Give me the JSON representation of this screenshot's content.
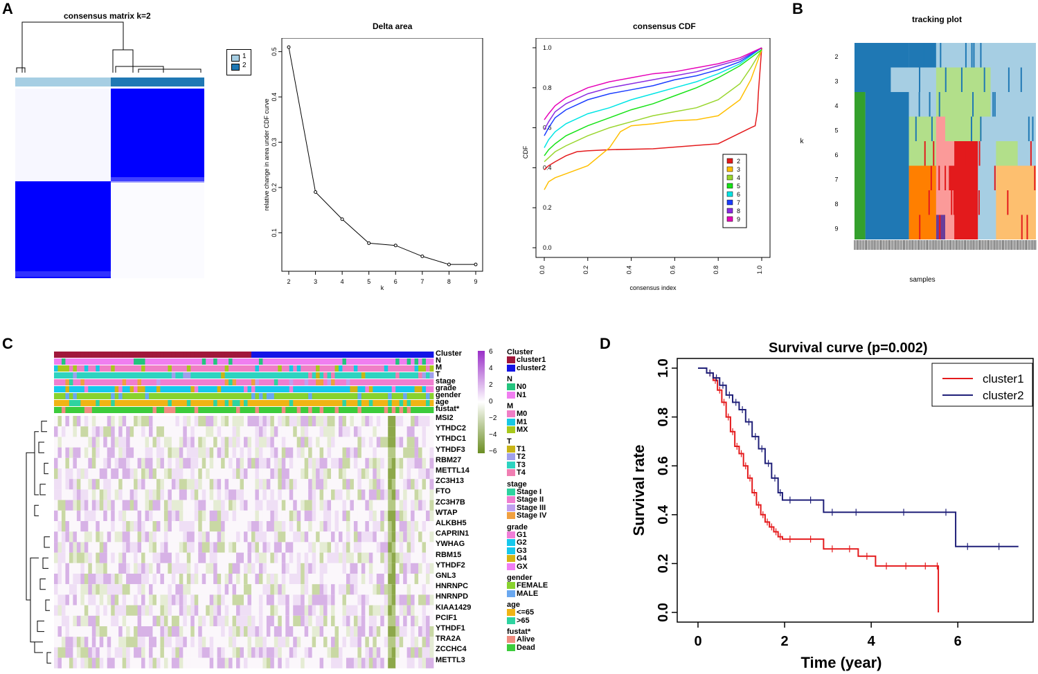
{
  "panels": {
    "a": "A",
    "b": "B",
    "c": "C",
    "d": "D"
  },
  "consensus_matrix": {
    "title": "consensus matrix k=2",
    "legend": [
      "1",
      "2"
    ],
    "colors": {
      "c1": "#a6cee3",
      "c2": "#1f78b4",
      "fill": "#0000ff"
    }
  },
  "tracking": {
    "title": "tracking plot",
    "xlabel": "samples",
    "ylabel": "k",
    "rows": [
      "2",
      "3",
      "4",
      "5",
      "6",
      "7",
      "8",
      "9"
    ]
  },
  "chart_data": [
    {
      "id": "delta",
      "type": "line",
      "title": "Delta area",
      "xlabel": "k",
      "ylabel": "relative change in area under CDF curve",
      "x": [
        2,
        3,
        4,
        5,
        6,
        7,
        8,
        9
      ],
      "y": [
        0.51,
        0.19,
        0.13,
        0.077,
        0.072,
        0.048,
        0.03,
        0.03
      ],
      "xticks": [
        "2",
        "3",
        "4",
        "5",
        "6",
        "7",
        "8",
        "9"
      ],
      "yticks": [
        "0.1",
        "0.2",
        "0.3",
        "0.4",
        "0.5"
      ],
      "ylim": [
        0.015,
        0.53
      ]
    },
    {
      "id": "cdf",
      "type": "line",
      "title": "consensus CDF",
      "xlabel": "consensus index",
      "ylabel": "CDF",
      "xticks": [
        "0.0",
        "0.2",
        "0.4",
        "0.6",
        "0.8",
        "1.0"
      ],
      "yticks": [
        "0.0",
        "0.2",
        "0.4",
        "0.6",
        "0.8",
        "1.0"
      ],
      "series": [
        {
          "name": "2",
          "color": "#e41a1c",
          "x": [
            0.0,
            0.02,
            0.05,
            0.1,
            0.15,
            0.2,
            0.3,
            0.5,
            0.8,
            0.95,
            0.97,
            0.98,
            0.985,
            1.0
          ],
          "y": [
            0.39,
            0.41,
            0.43,
            0.46,
            0.48,
            0.485,
            0.49,
            0.495,
            0.52,
            0.6,
            0.61,
            0.68,
            0.78,
            1.0
          ]
        },
        {
          "name": "3",
          "color": "#ffbf00",
          "x": [
            0.0,
            0.02,
            0.05,
            0.1,
            0.2,
            0.3,
            0.35,
            0.4,
            0.5,
            0.6,
            0.7,
            0.8,
            0.9,
            0.95,
            1.0
          ],
          "y": [
            0.29,
            0.33,
            0.35,
            0.37,
            0.41,
            0.5,
            0.58,
            0.61,
            0.62,
            0.635,
            0.64,
            0.66,
            0.74,
            0.84,
            0.99
          ]
        },
        {
          "name": "4",
          "color": "#99d62e",
          "x": [
            0.0,
            0.02,
            0.05,
            0.1,
            0.2,
            0.3,
            0.4,
            0.5,
            0.6,
            0.7,
            0.8,
            0.9,
            0.95,
            1.0
          ],
          "y": [
            0.43,
            0.45,
            0.48,
            0.51,
            0.56,
            0.6,
            0.63,
            0.66,
            0.68,
            0.7,
            0.74,
            0.82,
            0.9,
            0.99
          ]
        },
        {
          "name": "5",
          "color": "#17e317",
          "x": [
            0.0,
            0.02,
            0.05,
            0.1,
            0.2,
            0.3,
            0.4,
            0.5,
            0.6,
            0.7,
            0.8,
            0.9,
            1.0
          ],
          "y": [
            0.46,
            0.49,
            0.52,
            0.56,
            0.61,
            0.65,
            0.69,
            0.72,
            0.76,
            0.8,
            0.85,
            0.91,
            0.99
          ]
        },
        {
          "name": "6",
          "color": "#00e5e5",
          "x": [
            0.0,
            0.02,
            0.05,
            0.1,
            0.2,
            0.3,
            0.4,
            0.5,
            0.6,
            0.7,
            0.8,
            0.9,
            1.0
          ],
          "y": [
            0.5,
            0.54,
            0.58,
            0.62,
            0.67,
            0.7,
            0.74,
            0.77,
            0.8,
            0.83,
            0.87,
            0.92,
            1.0
          ]
        },
        {
          "name": "7",
          "color": "#1a3dff",
          "x": [
            0.0,
            0.02,
            0.05,
            0.1,
            0.2,
            0.3,
            0.4,
            0.5,
            0.6,
            0.7,
            0.8,
            0.9,
            1.0
          ],
          "y": [
            0.56,
            0.6,
            0.65,
            0.69,
            0.74,
            0.77,
            0.79,
            0.81,
            0.84,
            0.86,
            0.89,
            0.93,
            1.0
          ]
        },
        {
          "name": "8",
          "color": "#8a2be2",
          "x": [
            0.0,
            0.02,
            0.05,
            0.1,
            0.2,
            0.3,
            0.4,
            0.5,
            0.6,
            0.7,
            0.8,
            0.9,
            1.0
          ],
          "y": [
            0.59,
            0.63,
            0.68,
            0.72,
            0.77,
            0.8,
            0.82,
            0.84,
            0.86,
            0.88,
            0.91,
            0.94,
            1.0
          ]
        },
        {
          "name": "9",
          "color": "#e600b8",
          "x": [
            0.0,
            0.02,
            0.05,
            0.1,
            0.2,
            0.3,
            0.4,
            0.5,
            0.6,
            0.7,
            0.8,
            0.9,
            1.0
          ],
          "y": [
            0.64,
            0.67,
            0.71,
            0.75,
            0.8,
            0.83,
            0.85,
            0.87,
            0.88,
            0.9,
            0.92,
            0.95,
            1.0
          ]
        }
      ]
    },
    {
      "id": "heatmap",
      "type": "heatmap",
      "tracks": [
        "Cluster",
        "N",
        "M",
        "T",
        "stage",
        "grade",
        "gender",
        "age",
        "fustat*"
      ],
      "genes": [
        "MSI2",
        "YTHDC2",
        "YTHDC1",
        "YTHDF3",
        "RBM27",
        "METTL14",
        "ZC3H13",
        "FTO",
        "ZC3H7B",
        "WTAP",
        "ALKBH5",
        "CAPRIN1",
        "YWHAG",
        "RBM15",
        "YTHDF2",
        "GNL3",
        "HNRNPC",
        "HNRNPD",
        "KIAA1429",
        "PCIF1",
        "YTHDF1",
        "TRA2A",
        "ZCCHC4",
        "METTL3"
      ],
      "scale_ticks": [
        "6",
        "4",
        "2",
        "0",
        "−2",
        "−4",
        "−6"
      ],
      "legend_groups": [
        {
          "title": "Cluster",
          "items": [
            {
              "label": "cluster1",
              "color": "#a0173b"
            },
            {
              "label": "cluster2",
              "color": "#1414e6"
            }
          ]
        },
        {
          "title": "N",
          "items": [
            {
              "label": "N0",
              "color": "#24c47e"
            },
            {
              "label": "N1",
              "color": "#f07ef0"
            }
          ]
        },
        {
          "title": "M",
          "items": [
            {
              "label": "M0",
              "color": "#f07ec6"
            },
            {
              "label": "M1",
              "color": "#17c8e3"
            },
            {
              "label": "MX",
              "color": "#a8c81c"
            }
          ]
        },
        {
          "title": "T",
          "items": [
            {
              "label": "T1",
              "color": "#c8b417"
            },
            {
              "label": "T2",
              "color": "#a0a0ec"
            },
            {
              "label": "T3",
              "color": "#2ed3c0"
            },
            {
              "label": "T4",
              "color": "#f07eb2"
            }
          ]
        },
        {
          "title": "stage",
          "items": [
            {
              "label": "Stage I",
              "color": "#2ed3a0"
            },
            {
              "label": "Stage II",
              "color": "#f07ed0"
            },
            {
              "label": "Stage III",
              "color": "#c0a0f0"
            },
            {
              "label": "Stage IV",
              "color": "#f0a040"
            }
          ]
        },
        {
          "title": "grade",
          "items": [
            {
              "label": "G1",
              "color": "#f07ed8"
            },
            {
              "label": "G2",
              "color": "#16c8ec"
            },
            {
              "label": "G3",
              "color": "#16c8ec"
            },
            {
              "label": "G4",
              "color": "#d4b414"
            },
            {
              "label": "GX",
              "color": "#f07ef4"
            }
          ]
        },
        {
          "title": "gender",
          "items": [
            {
              "label": "FEMALE",
              "color": "#88d22e"
            },
            {
              "label": "MALE",
              "color": "#6aa8f0"
            }
          ]
        },
        {
          "title": "age",
          "items": [
            {
              "label": "<=65",
              "color": "#f0b414"
            },
            {
              "label": ">65",
              "color": "#2ed3a0"
            }
          ]
        },
        {
          "title": "fustat*",
          "items": [
            {
              "label": "Alive",
              "color": "#f08c80"
            },
            {
              "label": "Dead",
              "color": "#3ccc3c"
            }
          ]
        }
      ]
    },
    {
      "id": "survival",
      "type": "line",
      "title": "Survival curve (p=0.002)",
      "xlabel": "Time (year)",
      "ylabel": "Survival rate",
      "xticks": [
        "0",
        "2",
        "4",
        "6"
      ],
      "yticks": [
        "0.0",
        "0.2",
        "0.4",
        "0.6",
        "0.8",
        "1.0"
      ],
      "series": [
        {
          "name": "cluster1",
          "color": "#e41a1c",
          "x": [
            0,
            0.2,
            0.35,
            0.45,
            0.55,
            0.65,
            0.75,
            0.85,
            0.95,
            1.05,
            1.15,
            1.25,
            1.35,
            1.45,
            1.55,
            1.65,
            1.75,
            1.85,
            1.95,
            2.3,
            2.9,
            3.3,
            3.7,
            4.1,
            4.6,
            5.0,
            5.5,
            5.55
          ],
          "y": [
            1.0,
            0.98,
            0.95,
            0.91,
            0.86,
            0.8,
            0.74,
            0.68,
            0.65,
            0.6,
            0.55,
            0.49,
            0.44,
            0.4,
            0.37,
            0.35,
            0.33,
            0.31,
            0.3,
            0.3,
            0.26,
            0.26,
            0.23,
            0.19,
            0.19,
            0.19,
            0.19,
            0.0
          ]
        },
        {
          "name": "cluster2",
          "color": "#1f1f78",
          "x": [
            0,
            0.2,
            0.35,
            0.5,
            0.65,
            0.8,
            0.95,
            1.1,
            1.25,
            1.4,
            1.55,
            1.7,
            1.85,
            1.95,
            2.3,
            2.9,
            3.3,
            4.0,
            5.5,
            5.95,
            6.5,
            7.4
          ],
          "y": [
            1.0,
            0.98,
            0.96,
            0.93,
            0.89,
            0.86,
            0.83,
            0.78,
            0.72,
            0.67,
            0.61,
            0.55,
            0.49,
            0.46,
            0.46,
            0.41,
            0.41,
            0.41,
            0.41,
            0.27,
            0.27,
            0.27
          ]
        }
      ]
    }
  ]
}
